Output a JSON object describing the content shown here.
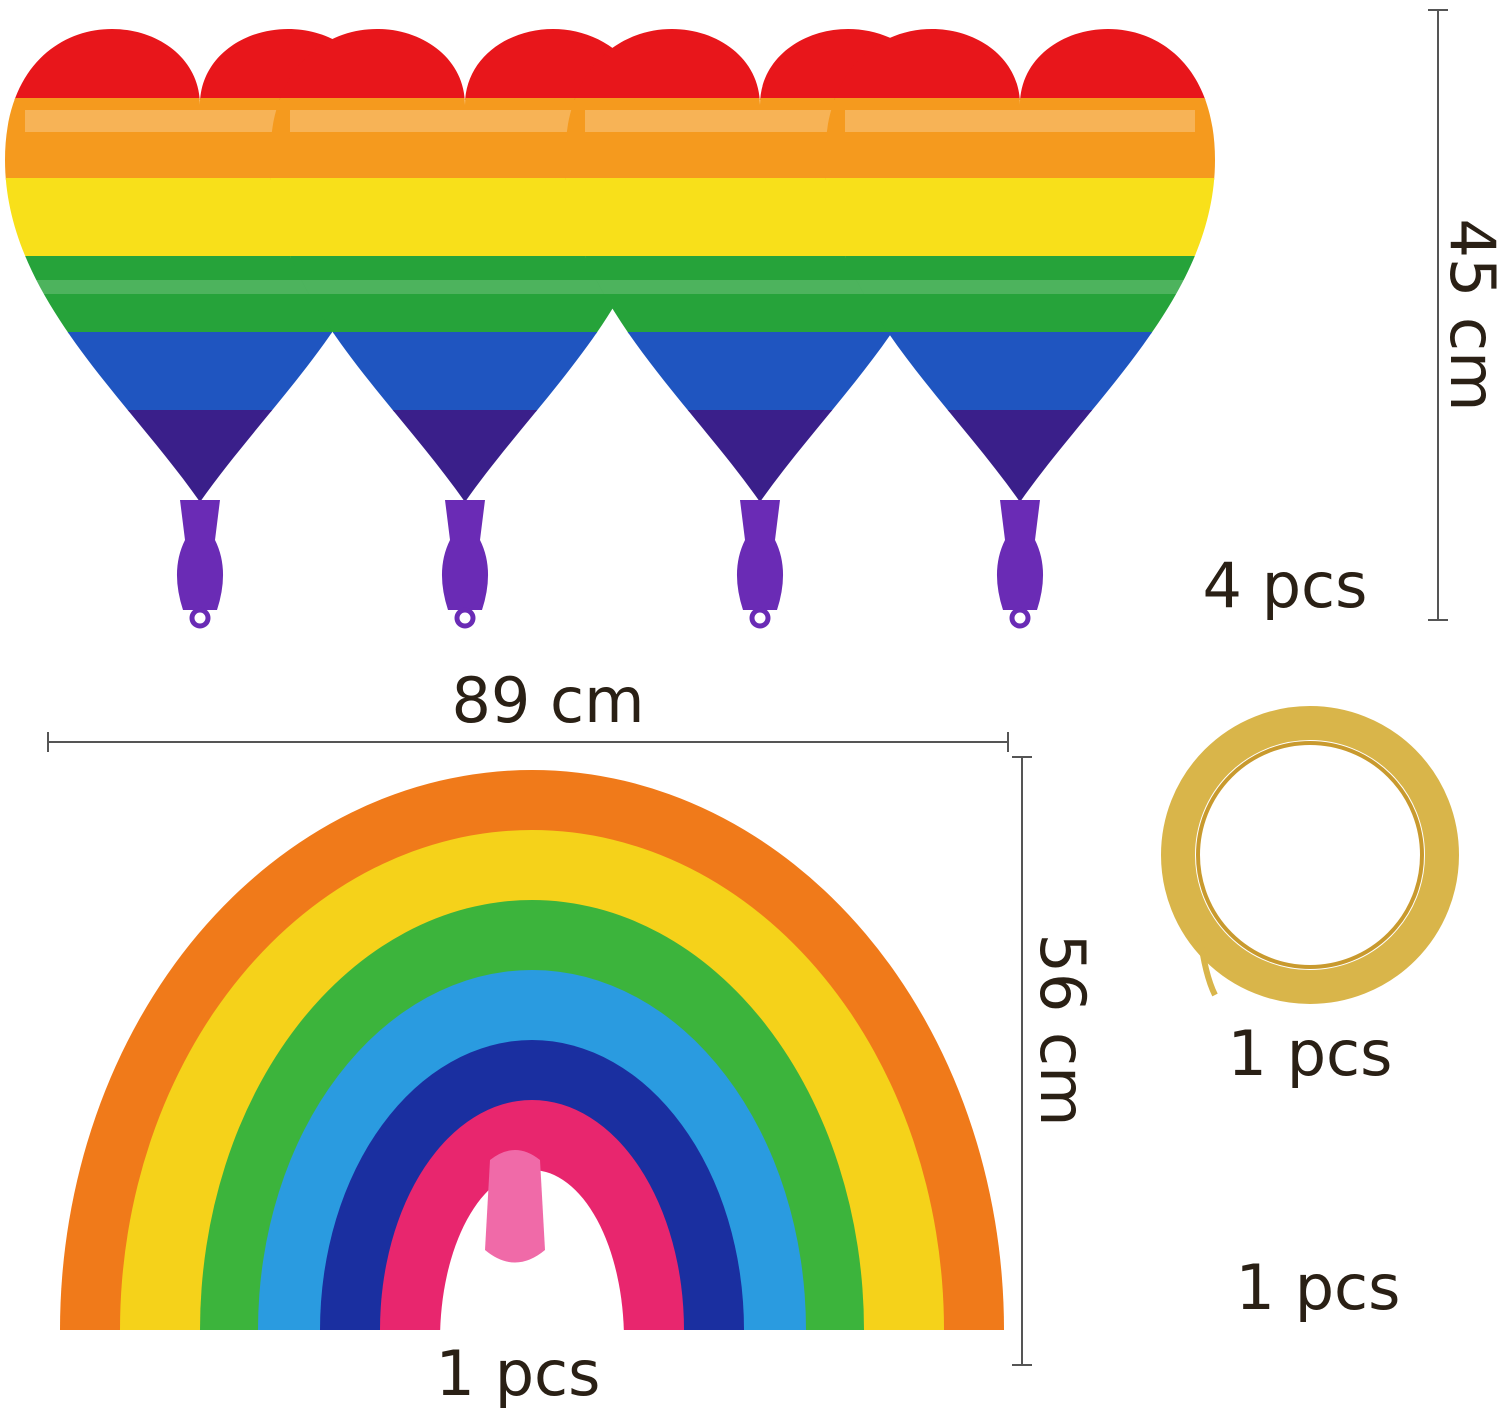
{
  "heart_balloons": {
    "height": "45 cm",
    "quantity": "4 pcs"
  },
  "rainbow_balloon": {
    "width": "89 cm",
    "height": "56 cm",
    "quantity": "1 pcs"
  },
  "ribbon": {
    "quantity": "1 pcs"
  },
  "extra": {
    "quantity": "1 pcs"
  }
}
